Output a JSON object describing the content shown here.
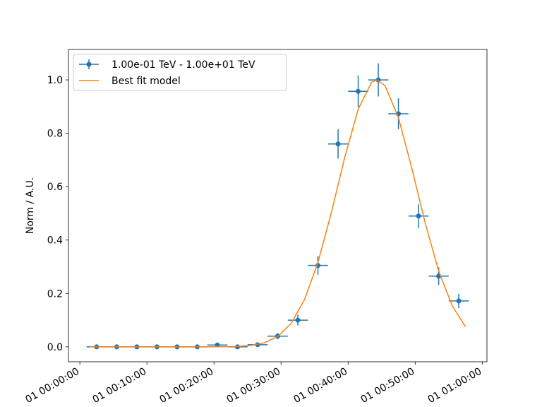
{
  "chart_data": {
    "type": "errorbar",
    "y_label": "Norm / A.U.",
    "xlim": [
      -1.7,
      60.7
    ],
    "ylim": [
      -0.056,
      1.114
    ],
    "xticks": [
      {
        "value": 0,
        "label": "01 00:00:00"
      },
      {
        "value": 10,
        "label": "01 00:10:00"
      },
      {
        "value": 20,
        "label": "01 00:20:00"
      },
      {
        "value": 30,
        "label": "01 00:30:00"
      },
      {
        "value": 40,
        "label": "01 00:40:00"
      },
      {
        "value": 50,
        "label": "01 00:50:00"
      },
      {
        "value": 60,
        "label": "01 01:00:00"
      }
    ],
    "yticks": [
      {
        "value": 0,
        "label": "0.0"
      },
      {
        "value": 0.2,
        "label": "0.2"
      },
      {
        "value": 0.4,
        "label": "0.4"
      },
      {
        "value": 0.6,
        "label": "0.6"
      },
      {
        "value": 0.8,
        "label": "0.8"
      },
      {
        "value": 1,
        "label": "1.0"
      }
    ],
    "legend": "upper left",
    "series": [
      {
        "name": "1.00e-01 TeV - 1.00e+01 TeV",
        "kind": "errorbar",
        "color": "#1f77b4",
        "x": [
          2.5,
          5.5,
          8.5,
          11.5,
          14.5,
          17.5,
          20.5,
          23.5,
          26.5,
          29.5,
          32.5,
          35.5,
          38.5,
          41.5,
          44.5,
          47.5,
          50.5,
          53.5,
          56.5
        ],
        "xerr": [
          1.5,
          1.5,
          1.5,
          1.5,
          1.5,
          1.5,
          1.5,
          1.5,
          1.5,
          1.5,
          1.5,
          1.5,
          1.5,
          1.5,
          1.5,
          1.5,
          1.5,
          1.5,
          1.5
        ],
        "values": [
          0,
          0,
          0,
          0,
          0,
          0,
          0.007,
          0,
          0.008,
          0.04,
          0.1,
          0.305,
          0.76,
          0.957,
          1.0,
          0.873,
          0.49,
          0.265,
          0.172
        ],
        "yerr": [
          0.004,
          0.004,
          0.004,
          0.004,
          0.004,
          0.004,
          0.006,
          0.004,
          0.006,
          0.012,
          0.02,
          0.035,
          0.055,
          0.06,
          0.062,
          0.058,
          0.045,
          0.033,
          0.027
        ]
      },
      {
        "name": "Best fit model",
        "kind": "line",
        "color": "#ff7f0e",
        "x": [
          1.5,
          3.5,
          5.5,
          7.5,
          9.5,
          11.5,
          13.5,
          15.5,
          17.5,
          19.5,
          21.5,
          23.5,
          25.5,
          27.5,
          29.5,
          31.5,
          33.5,
          35.5,
          37.5,
          39.5,
          41.5,
          43.5,
          44.3,
          45.5,
          47.5,
          49.5,
          51.5,
          53.5,
          55.5,
          57.5
        ],
        "values": [
          0,
          0,
          0,
          0,
          0,
          0,
          0,
          0,
          0,
          0.0001,
          0.0004,
          0.0016,
          0.0052,
          0.015,
          0.0386,
          0.0876,
          0.177,
          0.316,
          0.503,
          0.71,
          0.89,
          0.991,
          1.0,
          0.979,
          0.859,
          0.669,
          0.463,
          0.284,
          0.155,
          0.075
        ]
      }
    ]
  }
}
